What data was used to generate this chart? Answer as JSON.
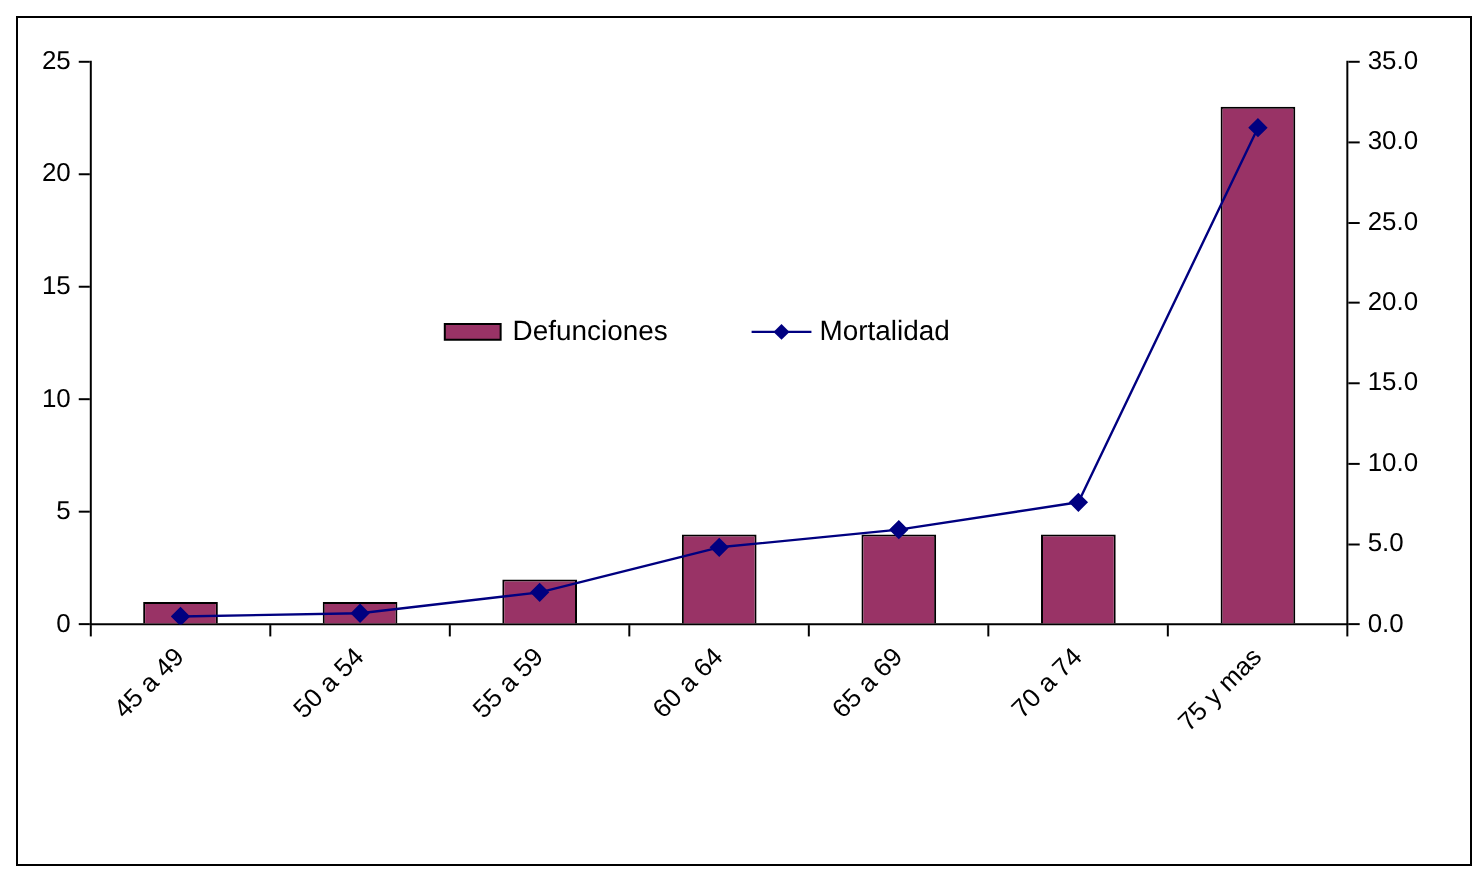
{
  "chart_data": {
    "type": "bar",
    "categories": [
      "45 a 49",
      "50 a 54",
      "55 a 59",
      "60 a 64",
      "65 a 69",
      "70 a 74",
      "75 y mas"
    ],
    "series": [
      {
        "name": "Defunciones",
        "color": "#993366",
        "values": [
          1,
          1,
          2,
          4,
          4,
          4,
          23
        ]
      },
      {
        "name": "Mortalidad",
        "type": "line",
        "axis": "y2",
        "color": "#000080",
        "marker": "diamond",
        "values": [
          0.5,
          0.7,
          2.0,
          4.8,
          5.9,
          7.6,
          30.9
        ]
      }
    ],
    "ylim": [
      0,
      25
    ],
    "yticks": [
      0,
      5,
      10,
      15,
      20,
      25
    ],
    "y2lim": [
      0,
      35
    ],
    "y2ticks": [
      {
        "value": 0,
        "label": "0.0"
      },
      {
        "value": 5,
        "label": "5.0"
      },
      {
        "value": 10,
        "label": "10.0"
      },
      {
        "value": 15,
        "label": "15.0"
      },
      {
        "value": 20,
        "label": "20.0"
      },
      {
        "value": 25,
        "label": "25.0"
      },
      {
        "value": 30,
        "label": "30.0"
      },
      {
        "value": 35,
        "label": "35.0"
      }
    ],
    "grid": false,
    "legend": "center"
  }
}
